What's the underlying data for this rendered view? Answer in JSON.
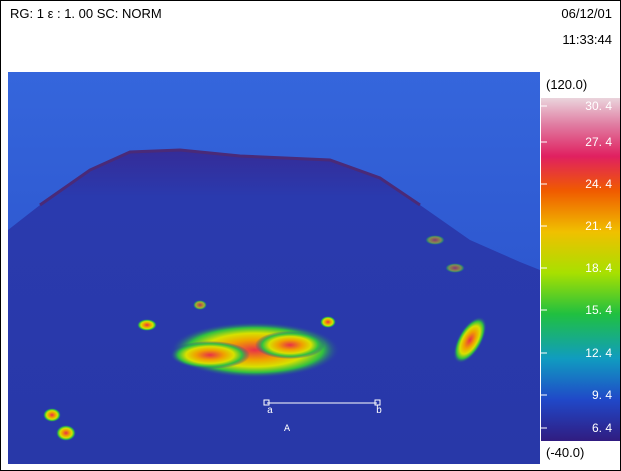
{
  "header": {
    "status": "RG: 1 ε : 1. 00 SC: NORM",
    "date": "06/12/01",
    "time": "11:33:44"
  },
  "scale": {
    "max": "(120.0)",
    "min": "(-40.0)",
    "labels": [
      "30. 4",
      "27. 4",
      "24. 4",
      "21. 4",
      "18. 4",
      "15. 4",
      "12. 4",
      "9. 4",
      "6. 4"
    ]
  },
  "measure": {
    "start": "a",
    "end": "b",
    "name": "A"
  }
}
